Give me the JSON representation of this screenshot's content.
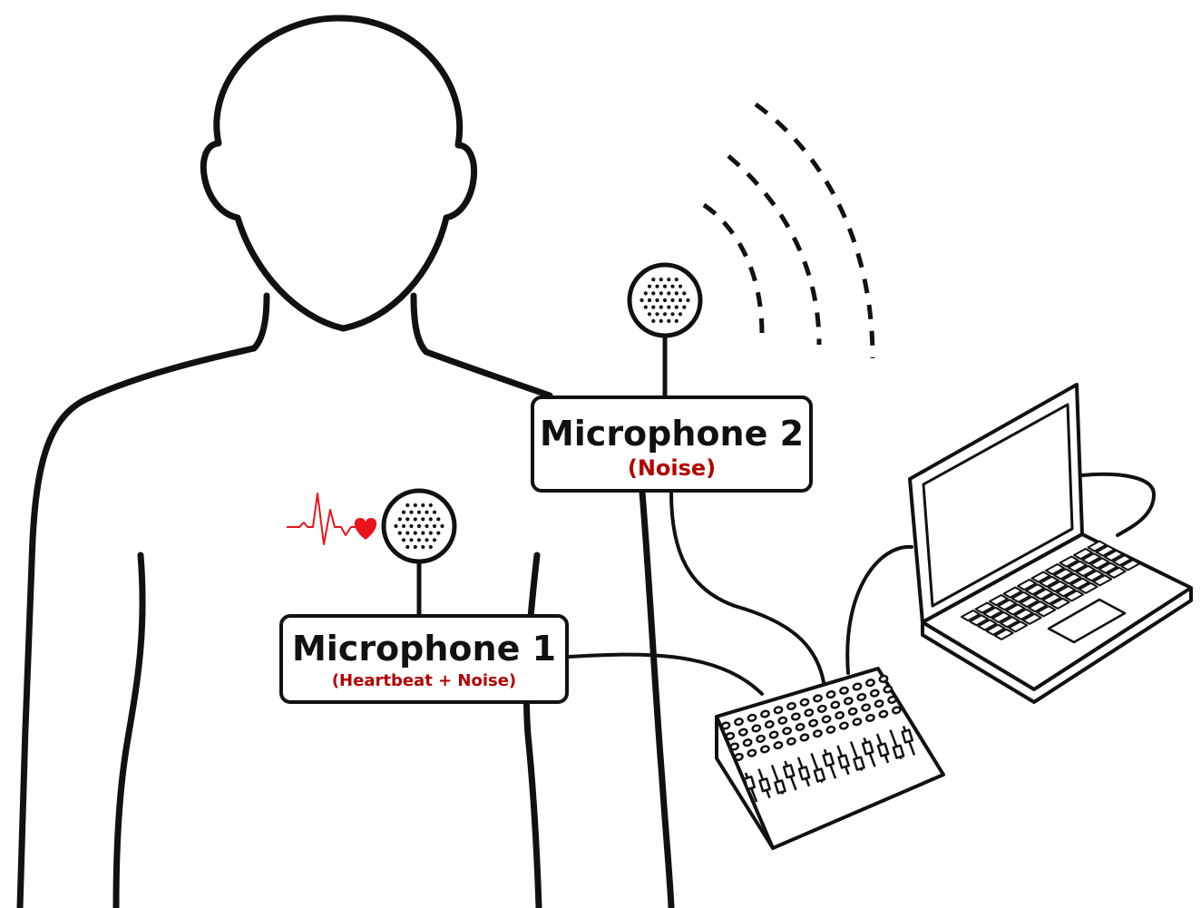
{
  "diagram": {
    "microphone_1": {
      "title": "Microphone 1",
      "subtitle": "(Heartbeat + Noise)"
    },
    "microphone_2": {
      "title": "Microphone 2",
      "subtitle": "(Noise)"
    },
    "colors": {
      "ink": "#111111",
      "accent": "#b30000",
      "heart": "#e8141b",
      "background": "#ffffff"
    },
    "icons": [
      "human-silhouette-icon",
      "heartbeat-icon",
      "microphone-icon",
      "sound-wave-icon",
      "audio-mixer-icon",
      "laptop-icon"
    ]
  }
}
